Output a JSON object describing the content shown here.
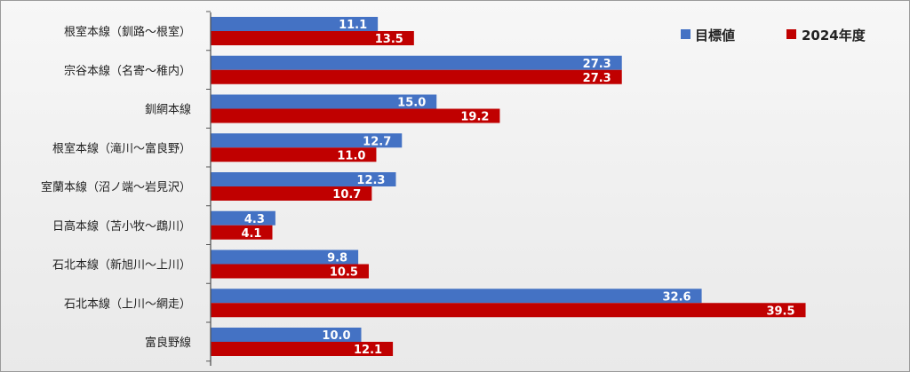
{
  "chart_data": {
    "type": "bar",
    "orientation": "horizontal",
    "categories": [
      "根室本線（釧路～根室）",
      "宗谷本線（名寄～稚内）",
      "釧網本線",
      "根室本線（滝川～富良野）",
      "室蘭本線（沼ノ端～岩見沢）",
      "日高本線（苫小牧～鵡川）",
      "石北本線（新旭川～上川）",
      "石北本線（上川～網走）",
      "富良野線"
    ],
    "series": [
      {
        "name": "目標値",
        "color": "#4472c4",
        "values": [
          11.1,
          27.3,
          15.0,
          12.7,
          12.3,
          4.3,
          9.8,
          32.6,
          10.0
        ]
      },
      {
        "name": "2024年度",
        "color": "#c00000",
        "values": [
          13.5,
          27.3,
          19.2,
          11.0,
          10.7,
          4.1,
          10.5,
          39.5,
          12.1
        ]
      }
    ],
    "xlim": [
      0,
      50
    ],
    "grid": false,
    "legend_position": "top-right"
  }
}
